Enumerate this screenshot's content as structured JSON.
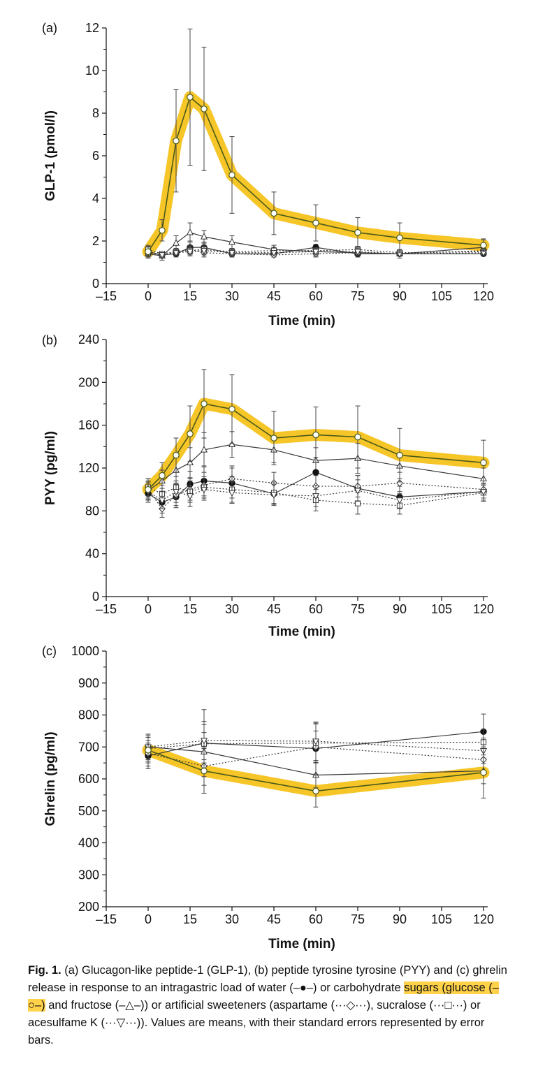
{
  "colors": {
    "highlight": "#f6c21b",
    "line": "#3a3a3a",
    "glucose_line": "#4a5a1a",
    "axis": "#111111"
  },
  "chart_data": [
    {
      "type": "line",
      "panel_label": "(a)",
      "ylabel": "GLP-1 (pmol/l)",
      "xlabel": "Time (min)",
      "xlim": [
        -15,
        120
      ],
      "ylim": [
        0,
        12
      ],
      "xticks": [
        -15,
        0,
        15,
        30,
        45,
        60,
        75,
        90,
        105,
        120
      ],
      "xtick_labels": [
        "–15",
        "0",
        "15",
        "30",
        "45",
        "60",
        "75",
        "90",
        "105",
        "120"
      ],
      "yticks": [
        0,
        2,
        4,
        6,
        8,
        10,
        12
      ],
      "highlight_series": "glucose",
      "series": [
        {
          "name": "glucose",
          "marker": "circle-open",
          "dash": "solid",
          "x": [
            0,
            5,
            10,
            15,
            20,
            30,
            45,
            60,
            75,
            90,
            120
          ],
          "y": [
            1.5,
            2.5,
            6.7,
            8.75,
            8.2,
            5.1,
            3.3,
            2.85,
            2.4,
            2.15,
            1.8
          ],
          "err": [
            0.3,
            0.5,
            2.4,
            3.2,
            2.9,
            1.8,
            1.0,
            0.85,
            0.7,
            0.7,
            0.3
          ]
        },
        {
          "name": "fructose",
          "marker": "triangle-up-open",
          "dash": "solid",
          "x": [
            0,
            5,
            10,
            15,
            20,
            30,
            45,
            60,
            75,
            90,
            120
          ],
          "y": [
            1.4,
            1.3,
            1.9,
            2.4,
            2.2,
            1.95,
            1.6,
            1.5,
            1.45,
            1.4,
            1.7
          ],
          "err": [
            0.2,
            0.2,
            0.35,
            0.45,
            0.3,
            0.3,
            0.2,
            0.2,
            0.2,
            0.2,
            0.35
          ]
        },
        {
          "name": "water",
          "marker": "circle-filled",
          "dash": "solid",
          "x": [
            0,
            5,
            10,
            15,
            20,
            30,
            45,
            60,
            75,
            90,
            120
          ],
          "y": [
            1.5,
            1.35,
            1.4,
            1.7,
            1.7,
            1.4,
            1.4,
            1.7,
            1.4,
            1.4,
            1.4
          ],
          "err": [
            0.15,
            0.1,
            0.15,
            0.3,
            0.25,
            0.15,
            0.15,
            0.15,
            0.15,
            0.1,
            0.1
          ]
        },
        {
          "name": "aspartame",
          "marker": "diamond-open",
          "dash": "dotted",
          "x": [
            0,
            5,
            10,
            15,
            20,
            30,
            45,
            60,
            75,
            90,
            120
          ],
          "y": [
            1.4,
            1.3,
            1.5,
            1.6,
            1.45,
            1.4,
            1.35,
            1.4,
            1.45,
            1.4,
            1.55
          ],
          "err": [
            0.15,
            0.1,
            0.15,
            0.2,
            0.2,
            0.15,
            0.1,
            0.15,
            0.15,
            0.1,
            0.15
          ]
        },
        {
          "name": "sucralose",
          "marker": "square-open",
          "dash": "dotted",
          "x": [
            0,
            5,
            10,
            15,
            20,
            30,
            45,
            60,
            75,
            90,
            120
          ],
          "y": [
            1.6,
            1.4,
            1.5,
            1.55,
            1.6,
            1.5,
            1.55,
            1.55,
            1.6,
            1.45,
            1.5
          ],
          "err": [
            0.15,
            0.1,
            0.15,
            0.2,
            0.2,
            0.15,
            0.15,
            0.15,
            0.15,
            0.1,
            0.15
          ]
        },
        {
          "name": "acesulfame K",
          "marker": "triangle-down-open",
          "dash": "dotted",
          "x": [
            0,
            5,
            10,
            15,
            20,
            30,
            45,
            60,
            75,
            90,
            120
          ],
          "y": [
            1.45,
            1.35,
            1.45,
            1.5,
            1.55,
            1.45,
            1.45,
            1.5,
            1.5,
            1.4,
            1.45
          ],
          "err": [
            0.15,
            0.1,
            0.15,
            0.2,
            0.2,
            0.15,
            0.1,
            0.15,
            0.15,
            0.1,
            0.15
          ]
        }
      ]
    },
    {
      "type": "line",
      "panel_label": "(b)",
      "ylabel": "PYY (pg/ml)",
      "xlabel": "Time (min)",
      "xlim": [
        -15,
        120
      ],
      "ylim": [
        0,
        240
      ],
      "xticks": [
        -15,
        0,
        15,
        30,
        45,
        60,
        75,
        90,
        105,
        120
      ],
      "xtick_labels": [
        "–15",
        "0",
        "15",
        "30",
        "45",
        "60",
        "75",
        "90",
        "105",
        "120"
      ],
      "yticks": [
        0,
        40,
        80,
        120,
        160,
        200,
        240
      ],
      "highlight_series": "glucose",
      "series": [
        {
          "name": "glucose",
          "marker": "circle-open",
          "dash": "solid",
          "x": [
            0,
            5,
            10,
            15,
            20,
            30,
            45,
            60,
            75,
            90,
            120
          ],
          "y": [
            100,
            113,
            132,
            152,
            180,
            175,
            148,
            151,
            149,
            132,
            125
          ],
          "err": [
            10,
            12,
            16,
            26,
            32,
            32,
            25,
            26,
            29,
            25,
            21
          ]
        },
        {
          "name": "fructose",
          "marker": "triangle-up-open",
          "dash": "solid",
          "x": [
            0,
            5,
            10,
            15,
            20,
            30,
            45,
            60,
            75,
            90,
            120
          ],
          "y": [
            99,
            108,
            118,
            125,
            137,
            142,
            137,
            127,
            129,
            122,
            110
          ],
          "err": [
            8,
            10,
            12,
            14,
            16,
            12,
            12,
            12,
            14,
            12,
            10
          ]
        },
        {
          "name": "water",
          "marker": "circle-filled",
          "dash": "solid",
          "x": [
            0,
            5,
            10,
            15,
            20,
            30,
            45,
            60,
            75,
            90,
            120
          ],
          "y": [
            96,
            88,
            93,
            105,
            108,
            106,
            96,
            116,
            101,
            93,
            98
          ],
          "err": [
            8,
            10,
            10,
            12,
            14,
            14,
            10,
            14,
            12,
            10,
            8
          ]
        },
        {
          "name": "aspartame",
          "marker": "diamond-open",
          "dash": "dotted",
          "x": [
            0,
            5,
            10,
            15,
            20,
            30,
            45,
            60,
            75,
            90,
            120
          ],
          "y": [
            100,
            82,
            95,
            100,
            104,
            110,
            106,
            103,
            103,
            106,
            100
          ],
          "err": [
            8,
            8,
            10,
            10,
            12,
            12,
            10,
            10,
            10,
            10,
            8
          ]
        },
        {
          "name": "sucralose",
          "marker": "square-open",
          "dash": "dotted",
          "x": [
            0,
            5,
            10,
            15,
            20,
            30,
            45,
            60,
            75,
            90,
            120
          ],
          "y": [
            102,
            96,
            102,
            98,
            102,
            100,
            97,
            90,
            87,
            85,
            97
          ],
          "err": [
            8,
            8,
            10,
            10,
            10,
            12,
            10,
            10,
            10,
            8,
            8
          ]
        },
        {
          "name": "acesulfame K",
          "marker": "triangle-down-open",
          "dash": "dotted",
          "x": [
            0,
            5,
            10,
            15,
            20,
            30,
            45,
            60,
            75,
            90,
            120
          ],
          "y": [
            98,
            90,
            98,
            94,
            100,
            97,
            95,
            94,
            99,
            90,
            98
          ],
          "err": [
            8,
            8,
            10,
            10,
            10,
            10,
            10,
            10,
            10,
            8,
            8
          ]
        }
      ]
    },
    {
      "type": "line",
      "panel_label": "(c)",
      "ylabel": "Ghrelin (pg/ml)",
      "xlabel": "Time (min)",
      "xlim": [
        -15,
        120
      ],
      "ylim": [
        200,
        1000
      ],
      "xticks": [
        -15,
        0,
        15,
        30,
        45,
        60,
        75,
        90,
        105,
        120
      ],
      "xtick_labels": [
        "–15",
        "0",
        "15",
        "30",
        "45",
        "60",
        "75",
        "90",
        "105",
        "120"
      ],
      "yticks": [
        200,
        300,
        400,
        500,
        600,
        700,
        800,
        900,
        1000
      ],
      "highlight_series": "glucose",
      "series": [
        {
          "name": "glucose",
          "marker": "circle-open",
          "dash": "solid",
          "x": [
            0,
            20,
            60,
            120
          ],
          "y": [
            690,
            625,
            562,
            620
          ],
          "err": [
            40,
            70,
            50,
            80
          ]
        },
        {
          "name": "fructose",
          "marker": "triangle-up-open",
          "dash": "solid",
          "x": [
            0,
            20,
            60,
            120
          ],
          "y": [
            700,
            685,
            612,
            625
          ],
          "err": [
            40,
            60,
            40,
            40
          ]
        },
        {
          "name": "water",
          "marker": "circle-filled",
          "dash": "solid",
          "x": [
            0,
            20,
            60,
            120
          ],
          "y": [
            672,
            712,
            695,
            748
          ],
          "err": [
            40,
            105,
            80,
            55
          ]
        },
        {
          "name": "aspartame",
          "marker": "diamond-open",
          "dash": "dotted",
          "x": [
            0,
            20,
            60,
            120
          ],
          "y": [
            680,
            640,
            700,
            660
          ],
          "err": [
            40,
            60,
            50,
            40
          ]
        },
        {
          "name": "sucralose",
          "marker": "square-open",
          "dash": "dotted",
          "x": [
            0,
            20,
            60,
            120
          ],
          "y": [
            695,
            710,
            712,
            715
          ],
          "err": [
            40,
            60,
            60,
            40
          ]
        },
        {
          "name": "acesulfame K",
          "marker": "triangle-down-open",
          "dash": "dotted",
          "x": [
            0,
            20,
            60,
            120
          ],
          "y": [
            700,
            720,
            718,
            688
          ],
          "err": [
            40,
            60,
            60,
            40
          ]
        }
      ]
    }
  ],
  "caption": {
    "label": "Fig. 1.",
    "text_1": " (a) Glucagon-like peptide-1 (GLP-1), (b) peptide tyrosine tyrosine (PYY) and (c) ghrelin release in response to an intragastric load of water (–●–) or carbohydrate ",
    "highlighted": "sugars (glucose (–○–)",
    "text_2": " and fructose (–△–)) or artificial sweeteners (aspartame (···◇···), sucralose (···□···) or acesulfame K (···▽···)). Values are means, with their standard errors represented by error bars."
  }
}
